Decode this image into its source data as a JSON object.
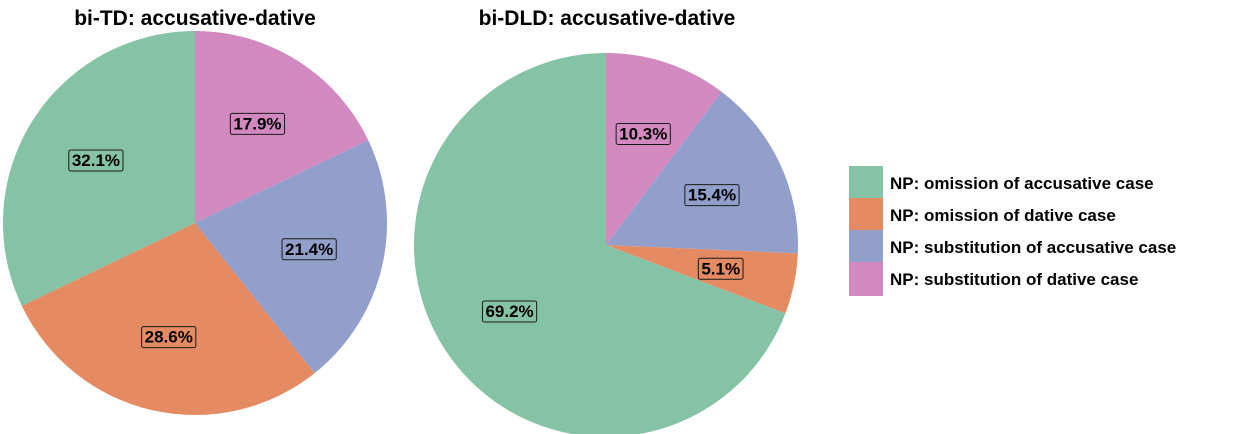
{
  "chart_data": [
    {
      "type": "pie",
      "title": "bi-TD: accusative-dative",
      "slices": [
        {
          "category": "NP: substitution of dative case",
          "value": 17.9,
          "label": "17.9%"
        },
        {
          "category": "NP: substitution of accusative case",
          "value": 21.4,
          "label": "21.4%"
        },
        {
          "category": "NP: omission of dative case",
          "value": 28.6,
          "label": "28.6%"
        },
        {
          "category": "NP: omission of accusative case",
          "value": 32.1,
          "label": "32.1%"
        }
      ]
    },
    {
      "type": "pie",
      "title": "bi-DLD: accusative-dative",
      "slices": [
        {
          "category": "NP: substitution of dative case",
          "value": 10.3,
          "label": "10.3%"
        },
        {
          "category": "NP: substitution of accusative case",
          "value": 15.4,
          "label": "15.4%"
        },
        {
          "category": "NP: omission of dative case",
          "value": 5.1,
          "label": "5.1%"
        },
        {
          "category": "NP: omission of accusative case",
          "value": 69.2,
          "label": "69.2%"
        }
      ]
    }
  ],
  "legend": {
    "position": "right",
    "items": [
      {
        "label": "NP: omission of accusative case",
        "color": "#86c2a5"
      },
      {
        "label": "NP: omission of dative case",
        "color": "#e58b63"
      },
      {
        "label": "NP: substitution of accusative case",
        "color": "#929fcb"
      },
      {
        "label": "NP: substitution of dative case",
        "color": "#d189c0"
      }
    ]
  }
}
